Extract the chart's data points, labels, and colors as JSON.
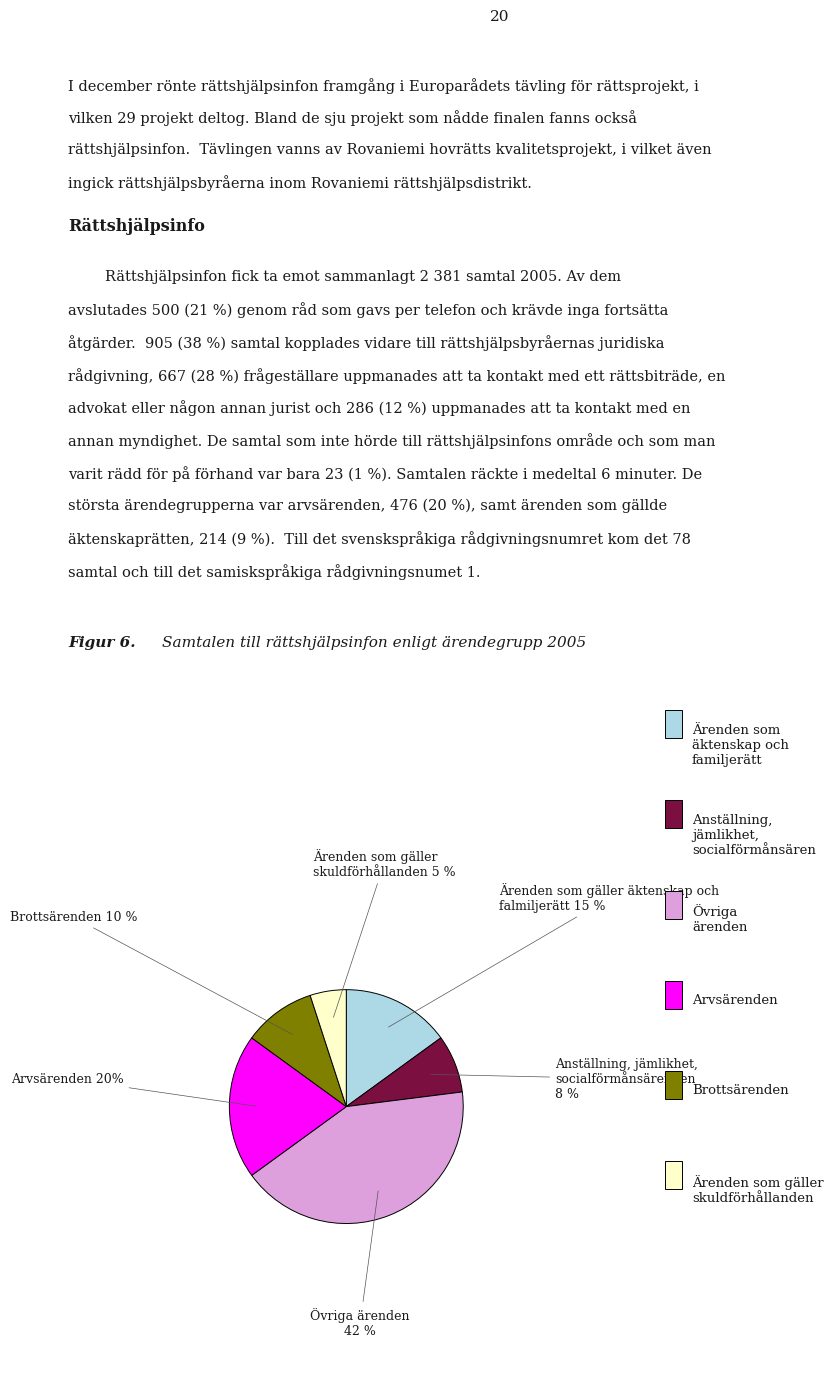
{
  "page_number": "20",
  "body_text_lines": [
    "I december rönte rättshjälpsinfon framgång i Europarådets tävling för rättsprojekt, i",
    "vilken 29 projekt deltog. Bland de sju projekt som nådde finalen fanns också",
    "rättshjälpsinfon.  Tävlingen vanns av Rovaniemi hovrätts kvalitetsprojekt, i vilket även",
    "ingick rättshjälpsbyråerna inom Rovaniemi rättshjälpsdistrikt."
  ],
  "heading": "Rättshjälpsinfo",
  "para2_lines": [
    "        Rättshjälpsinfon fick ta emot sammanlagt 2 381 samtal 2005. Av dem",
    "avslutades 500 (21 %) genom råd som gavs per telefon och krävde inga fortsätta",
    "åtgärder.  905 (38 %) samtal kopplades vidare till rättshjälpsbyråernas juridiska",
    "rådgivning, 667 (28 %) frågeställare uppmanades att ta kontakt med ett rättsbiträde, en",
    "advokat eller någon annan jurist och 286 (12 %) uppmanades att ta kontakt med en",
    "annan myndighet. De samtal som inte hörde till rättshjälpsinfons område och som man",
    "varit rädd för på förhand var bara 23 (1 %). Samtalen räckte i medeltal 6 minuter. De",
    "största ärendegrupperna var arvsärenden, 476 (20 %), samt ärenden som gällde",
    "äktenskaprätten, 214 (9 %).  Till det svenskspråkiga rådgivningsnumret kom det 78",
    "samtal och till det samiskspråkiga rådgivningsnumet 1."
  ],
  "pie_slices": [
    {
      "value": 15,
      "color": "#add8e6",
      "label_pie": "Ärenden som gäller äktenskap och\nfalmiljerätt 15 %"
    },
    {
      "value": 8,
      "color": "#7b1040",
      "label_pie": "Anställning, jämlikhet,\nsocialförmånsärenden\n8 %"
    },
    {
      "value": 42,
      "color": "#dda0dd",
      "label_pie": "Övriga ärenden\n42 %"
    },
    {
      "value": 20,
      "color": "#ff00ff",
      "label_pie": "Arvsärenden 20%"
    },
    {
      "value": 10,
      "color": "#808000",
      "label_pie": "Brottsärenden 10 %"
    },
    {
      "value": 5,
      "color": "#ffffcc",
      "label_pie": "Ärenden som gäller\nskuldförhållanden 5 %"
    }
  ],
  "legend_entries": [
    {
      "label": "Ärenden som\näktenskap och\nfamiljerätt",
      "color": "#add8e6"
    },
    {
      "label": "Anställning,\njämlikhet,\nsocialförmånsären",
      "color": "#7b1040"
    },
    {
      "label": "Övriga\närenden",
      "color": "#dda0dd"
    },
    {
      "label": "Arvsärenden",
      "color": "#ff00ff"
    },
    {
      "label": "Brottsärenden",
      "color": "#808000"
    },
    {
      "label": "Ärenden som gäller\nskuldförhållanden",
      "color": "#ffffcc"
    }
  ],
  "bg": "#ffffff",
  "fg": "#1a1a1a"
}
